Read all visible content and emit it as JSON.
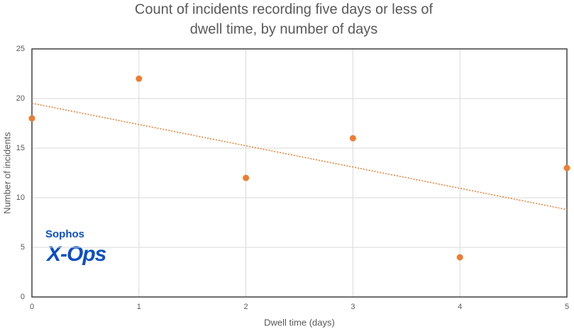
{
  "chart_data": {
    "type": "scatter",
    "title": [
      "Count of incidents recording five days or less of",
      "dwell time, by number of days"
    ],
    "x_label": "Dwell time (days)",
    "y_label": "Number of incidents",
    "x": [
      0,
      1,
      2,
      3,
      4,
      5
    ],
    "values": [
      18,
      22,
      12,
      16,
      4,
      13
    ],
    "color": "#ED7D31",
    "trendline": "linear",
    "xlim": [
      0,
      5
    ],
    "xticks": [
      0,
      1,
      2,
      3,
      4,
      5
    ],
    "ylim": [
      0,
      25
    ],
    "yticks": [
      0,
      5,
      10,
      15,
      20,
      25
    ],
    "grid": true,
    "logo": [
      "Sophos",
      "X-Ops"
    ]
  }
}
